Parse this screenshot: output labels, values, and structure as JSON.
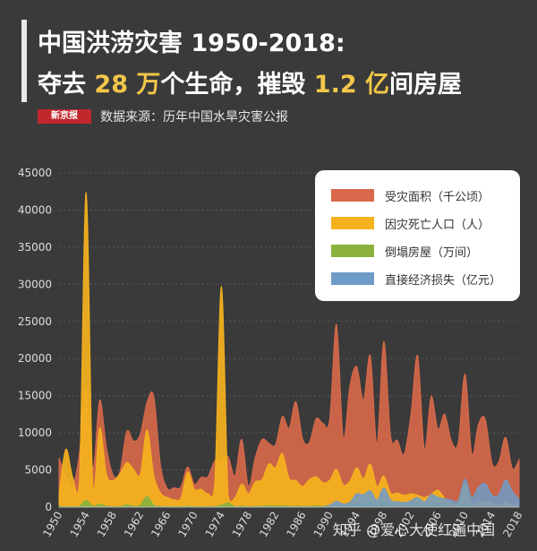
{
  "header": {
    "title_line1": "中国洪涝灾害 1950-2018:",
    "title_line2_pre": "夺去 ",
    "title_line2_hl1": "28 万",
    "title_line2_mid": "个生命，摧毁 ",
    "title_line2_hl2": "1.2 亿",
    "title_line2_post": "间房屋",
    "logo_text": "新京报",
    "source": "数据来源：历年中国水旱灾害公报"
  },
  "watermark": "知乎 @爱心大使红遍中国",
  "colors": {
    "area": "#d9694a",
    "deaths": "#f5b21e",
    "houses": "#8ab23d",
    "loss": "#6f9bc8",
    "grid": "#5a5a5a",
    "background": "#3a3a3a"
  },
  "chart_data": {
    "type": "area",
    "title": "",
    "xlabel": "",
    "ylabel": "",
    "ylim": [
      0,
      45000
    ],
    "yticks": [
      "0",
      "5000",
      "10000",
      "15000",
      "20000",
      "25000",
      "30000",
      "35000",
      "40000",
      "45000"
    ],
    "xticks": [
      "1950",
      "1954",
      "1958",
      "1962",
      "1966",
      "1970",
      "1974",
      "1978",
      "1982",
      "1986",
      "1990",
      "1994",
      "1998",
      "2002",
      "2006",
      "2010",
      "2014",
      "2018"
    ],
    "legend_position": "top-right",
    "x": [
      1950,
      1951,
      1952,
      1953,
      1954,
      1955,
      1956,
      1957,
      1958,
      1959,
      1960,
      1961,
      1962,
      1963,
      1964,
      1965,
      1966,
      1967,
      1968,
      1969,
      1970,
      1971,
      1972,
      1973,
      1974,
      1975,
      1976,
      1977,
      1978,
      1979,
      1980,
      1981,
      1982,
      1983,
      1984,
      1985,
      1986,
      1987,
      1988,
      1989,
      1990,
      1991,
      1992,
      1993,
      1994,
      1995,
      1996,
      1997,
      1998,
      1999,
      2000,
      2001,
      2002,
      2003,
      2004,
      2005,
      2006,
      2007,
      2008,
      2009,
      2010,
      2011,
      2012,
      2013,
      2014,
      2015,
      2016,
      2017,
      2018
    ],
    "series": [
      {
        "name": "受灾面积（千公顷）",
        "color": "#d9694a",
        "values": [
          6600,
          4200,
          2800,
          7200,
          16100,
          5200,
          14400,
          8000,
          4300,
          4800,
          10200,
          8900,
          9800,
          14100,
          14900,
          5600,
          2500,
          2600,
          2700,
          5400,
          3100,
          4000,
          4100,
          6200,
          6400,
          6800,
          4200,
          9100,
          2800,
          6700,
          9100,
          8600,
          8400,
          12200,
          10600,
          14200,
          9200,
          8700,
          11900,
          11300,
          11800,
          24600,
          9400,
          16400,
          18900,
          14400,
          20400,
          8500,
          22300,
          9600,
          9000,
          7100,
          12400,
          20400,
          7800,
          14900,
          10500,
          12500,
          8900,
          8700,
          17900,
          7200,
          11200,
          11800,
          5900,
          6100,
          9400,
          5200,
          6400
        ]
      },
      {
        "name": "因灾死亡人口（人）",
        "color": "#f5b21e",
        "values": [
          1900,
          7800,
          4100,
          3300,
          42400,
          2700,
          10700,
          4400,
          3600,
          4500,
          6000,
          5100,
          4400,
          10400,
          4300,
          1900,
          1300,
          1000,
          1200,
          4700,
          2400,
          2400,
          1800,
          3100,
          29700,
          1600,
          1300,
          3100,
          1800,
          3400,
          3700,
          5800,
          5300,
          7200,
          3900,
          3600,
          2800,
          3700,
          4100,
          3300,
          3600,
          5100,
          3000,
          3500,
          5300,
          3800,
          5800,
          2800,
          4200,
          1900,
          1900,
          1600,
          1800,
          1600,
          1300,
          1700,
          2300,
          1200,
          600,
          500,
          3200,
          500,
          700,
          800,
          500,
          300,
          700,
          300,
          200
        ]
      },
      {
        "name": "倒塌房屋（万间）",
        "color": "#8ab23d",
        "values": [
          130,
          50,
          60,
          80,
          930,
          110,
          420,
          130,
          80,
          80,
          300,
          140,
          250,
          1440,
          260,
          100,
          60,
          50,
          60,
          100,
          60,
          60,
          60,
          100,
          280,
          570,
          60,
          120,
          50,
          120,
          130,
          200,
          130,
          200,
          110,
          140,
          90,
          110,
          160,
          130,
          240,
          270,
          120,
          290,
          360,
          420,
          580,
          100,
          700,
          160,
          110,
          100,
          180,
          230,
          90,
          150,
          200,
          100,
          40,
          60,
          270,
          70,
          60,
          50,
          40,
          20,
          40,
          20,
          10
        ]
      },
      {
        "name": "直接经济损失（亿元）",
        "color": "#6f9bc8",
        "values": [
          0,
          0,
          0,
          0,
          0,
          0,
          0,
          0,
          0,
          0,
          0,
          0,
          0,
          0,
          0,
          0,
          0,
          0,
          0,
          0,
          0,
          0,
          0,
          0,
          0,
          0,
          0,
          0,
          0,
          0,
          0,
          0,
          0,
          0,
          0,
          0,
          0,
          0,
          0,
          0,
          240,
          780,
          410,
          640,
          1800,
          1650,
          2210,
          930,
          2550,
          930,
          710,
          620,
          840,
          1300,
          710,
          1660,
          1330,
          1120,
          960,
          850,
          3750,
          1300,
          2680,
          3160,
          1580,
          1660,
          3640,
          2140,
          1060
        ]
      }
    ]
  }
}
